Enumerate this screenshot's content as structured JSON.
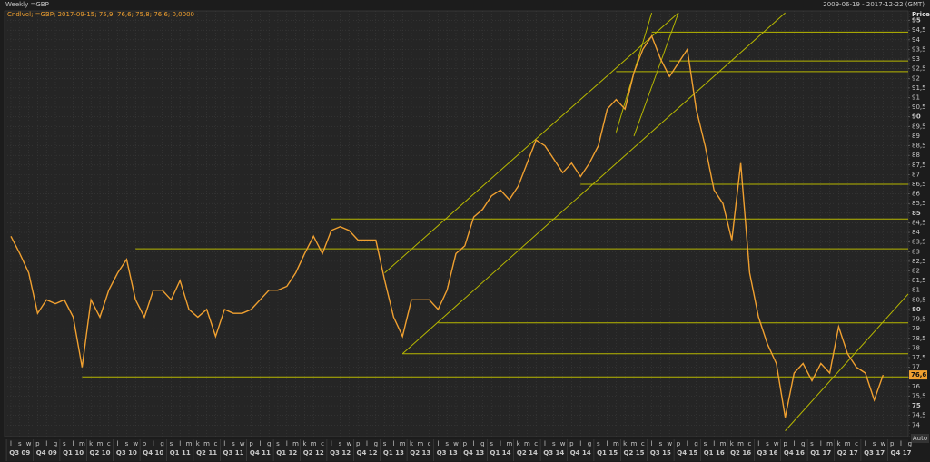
{
  "chart_data": {
    "type": "line",
    "title": "Weekly =GBP",
    "subtitle": "2009-06-19 - 2017-12-22 (GMT)",
    "series_info": "Cndlvol; =GBP; 2017-09-15; 75,9; 76,6; 75,8; 76,6; 0,0000",
    "y_axis_label": "Price",
    "auto_label": "Auto",
    "color": "#f0a030",
    "trend_color": "#b8b800",
    "x": [
      "2009-07",
      "2009-08",
      "2009-09",
      "2009-10",
      "2009-11",
      "2009-12",
      "2010-01",
      "2010-02",
      "2010-03",
      "2010-04",
      "2010-05",
      "2010-06",
      "2010-07",
      "2010-08",
      "2010-09",
      "2010-10",
      "2010-11",
      "2010-12",
      "2011-01",
      "2011-02",
      "2011-03",
      "2011-04",
      "2011-05",
      "2011-06",
      "2011-07",
      "2011-08",
      "2011-09",
      "2011-10",
      "2011-11",
      "2011-12",
      "2012-01",
      "2012-02",
      "2012-03",
      "2012-04",
      "2012-05",
      "2012-06",
      "2012-07",
      "2012-08",
      "2012-09",
      "2012-10",
      "2012-11",
      "2012-12",
      "2013-01",
      "2013-02",
      "2013-03",
      "2013-04",
      "2013-05",
      "2013-06",
      "2013-07",
      "2013-08",
      "2013-09",
      "2013-10",
      "2013-11",
      "2013-12",
      "2014-01",
      "2014-02",
      "2014-03",
      "2014-04",
      "2014-05",
      "2014-06",
      "2014-07",
      "2014-08",
      "2014-09",
      "2014-10",
      "2014-11",
      "2014-12",
      "2015-01",
      "2015-02",
      "2015-03",
      "2015-04",
      "2015-05",
      "2015-06",
      "2015-07",
      "2015-08",
      "2015-09",
      "2015-10",
      "2015-11",
      "2015-12",
      "2016-01",
      "2016-02",
      "2016-03",
      "2016-04",
      "2016-05",
      "2016-06",
      "2016-07",
      "2016-08",
      "2016-09",
      "2016-10",
      "2016-11",
      "2016-12",
      "2017-01",
      "2017-02",
      "2017-03",
      "2017-04",
      "2017-05",
      "2017-06",
      "2017-07",
      "2017-08",
      "2017-09"
    ],
    "values": [
      83.8,
      82.9,
      81.9,
      79.8,
      80.5,
      80.3,
      80.5,
      79.6,
      77.0,
      80.5,
      79.6,
      81.0,
      81.9,
      82.6,
      80.5,
      79.6,
      81.0,
      81.0,
      80.5,
      81.5,
      80.0,
      79.6,
      80.0,
      78.6,
      80.0,
      79.8,
      79.8,
      80.0,
      80.5,
      81.0,
      81.0,
      81.2,
      81.9,
      82.9,
      83.8,
      82.9,
      84.1,
      84.3,
      84.1,
      83.6,
      83.6,
      83.6,
      81.5,
      79.6,
      78.6,
      80.5,
      80.5,
      80.5,
      80.0,
      81.0,
      82.9,
      83.3,
      84.8,
      85.2,
      85.9,
      86.2,
      85.7,
      86.4,
      87.6,
      88.8,
      88.5,
      87.8,
      87.1,
      87.6,
      86.9,
      87.6,
      88.5,
      90.4,
      90.9,
      90.4,
      92.3,
      93.5,
      94.2,
      93.0,
      92.1,
      92.8,
      93.5,
      90.4,
      88.5,
      86.2,
      85.5,
      83.6,
      87.6,
      81.9,
      79.6,
      78.2,
      77.2,
      74.4,
      76.7,
      77.2,
      76.3,
      77.2,
      76.7,
      79.1,
      77.7,
      77.0,
      76.7,
      75.3,
      76.6
    ],
    "month_labels": [
      "l",
      "s",
      "w",
      "p",
      "l",
      "g",
      "s",
      "l",
      "m",
      "k",
      "m",
      "c",
      "l",
      "s",
      "w",
      "p",
      "l",
      "g",
      "s",
      "l",
      "m",
      "k",
      "m",
      "c",
      "l",
      "s",
      "w",
      "p",
      "l",
      "g",
      "s",
      "l",
      "m",
      "k",
      "m",
      "c",
      "l",
      "s",
      "w",
      "p",
      "l",
      "g",
      "s",
      "l",
      "m",
      "k",
      "m",
      "c",
      "l",
      "s",
      "w",
      "p",
      "l",
      "g",
      "s",
      "l",
      "m",
      "k",
      "m",
      "c",
      "l",
      "s",
      "w",
      "p",
      "l",
      "g",
      "s",
      "l",
      "m",
      "k",
      "m",
      "c",
      "l",
      "s",
      "w",
      "p",
      "l",
      "g",
      "s",
      "l",
      "m",
      "k",
      "m",
      "c",
      "l",
      "s",
      "w",
      "p",
      "l",
      "g",
      "s",
      "l",
      "m",
      "k",
      "m",
      "c",
      "l",
      "s",
      "w",
      "p",
      "l",
      "g"
    ],
    "quarter_labels": [
      "Q3 09",
      "Q4 09",
      "Q1 10",
      "Q2 10",
      "Q3 10",
      "Q4 10",
      "Q1 11",
      "Q2 11",
      "Q3 11",
      "Q4 11",
      "Q1 12",
      "Q2 12",
      "Q3 12",
      "Q4 12",
      "Q1 13",
      "Q2 13",
      "Q3 13",
      "Q4 13",
      "Q1 14",
      "Q2 14",
      "Q3 14",
      "Q4 14",
      "Q1 15",
      "Q2 15",
      "Q3 15",
      "Q4 15",
      "Q1 16",
      "Q2 16",
      "Q3 16",
      "Q4 16",
      "Q1 17",
      "Q2 17",
      "Q3 17",
      "Q4 17"
    ],
    "ylim": [
      73.4,
      95.5
    ],
    "yticks": [
      74,
      {
        "value": 74.5,
        "label": "74,5"
      },
      75,
      {
        "value": 75.5,
        "label": "75,5"
      },
      76,
      {
        "value": 76.5,
        "label": "76,5"
      },
      77,
      {
        "value": 77.5,
        "label": "77,5"
      },
      78,
      {
        "value": 78.5,
        "label": "78,5"
      },
      79,
      {
        "value": 79.5,
        "label": "79,5"
      },
      80,
      {
        "value": 80.5,
        "label": "80,5"
      },
      81,
      {
        "value": 81.5,
        "label": "81,5"
      },
      82,
      {
        "value": 82.5,
        "label": "82,5"
      },
      83,
      {
        "value": 83.5,
        "label": "83,5"
      },
      84,
      {
        "value": 84.5,
        "label": "84,5"
      },
      85,
      {
        "value": 85.5,
        "label": "85,5"
      },
      86,
      {
        "value": 86.5,
        "label": "86,5"
      },
      87,
      {
        "value": 87.5,
        "label": "87,5"
      },
      88,
      {
        "value": 88.5,
        "label": "88,5"
      },
      89,
      {
        "value": 89.5,
        "label": "89,5"
      },
      90,
      {
        "value": 90.5,
        "label": "90,5"
      },
      91,
      {
        "value": 91.5,
        "label": "91,5"
      },
      92,
      {
        "value": 92.5,
        "label": "92,5"
      },
      93,
      {
        "value": 93.5,
        "label": "93,5"
      },
      94,
      {
        "value": 94.5,
        "label": "94,5"
      },
      95
    ],
    "grid": true,
    "last_value": {
      "value": 76.6,
      "label": "76,6"
    },
    "trendlines": [
      {
        "x": [
          "2010-03",
          "2017-12"
        ],
        "y": [
          76.5,
          76.5
        ]
      },
      {
        "x": [
          "2013-03",
          "2017-12"
        ],
        "y": [
          77.7,
          77.7
        ]
      },
      {
        "x": [
          "2013-07",
          "2017-12"
        ],
        "y": [
          79.3,
          79.3
        ]
      },
      {
        "x": [
          "2010-09",
          "2017-12"
        ],
        "y": [
          83.15,
          83.15
        ]
      },
      {
        "x": [
          "2012-07",
          "2017-12"
        ],
        "y": [
          84.7,
          84.7
        ]
      },
      {
        "x": [
          "2014-11",
          "2017-12"
        ],
        "y": [
          86.5,
          86.5
        ]
      },
      {
        "x": [
          "2015-03",
          "2017-12"
        ],
        "y": [
          92.35,
          92.35
        ]
      },
      {
        "x": [
          "2015-09",
          "2017-12"
        ],
        "y": [
          92.9,
          92.9
        ]
      },
      {
        "x": [
          "2015-07",
          "2017-12"
        ],
        "y": [
          94.4,
          94.4
        ]
      },
      {
        "x": [
          "2013-01",
          "2015-10"
        ],
        "y": [
          81.9,
          95.4
        ]
      },
      {
        "x": [
          "2013-03",
          "2016-10"
        ],
        "y": [
          77.7,
          95.4
        ]
      },
      {
        "x": [
          "2015-03",
          "2015-07"
        ],
        "y": [
          89.2,
          95.4
        ]
      },
      {
        "x": [
          "2015-05",
          "2015-10"
        ],
        "y": [
          89.0,
          95.4
        ]
      },
      {
        "x": [
          "2016-10",
          "2017-12"
        ],
        "y": [
          73.7,
          80.8
        ]
      }
    ]
  }
}
